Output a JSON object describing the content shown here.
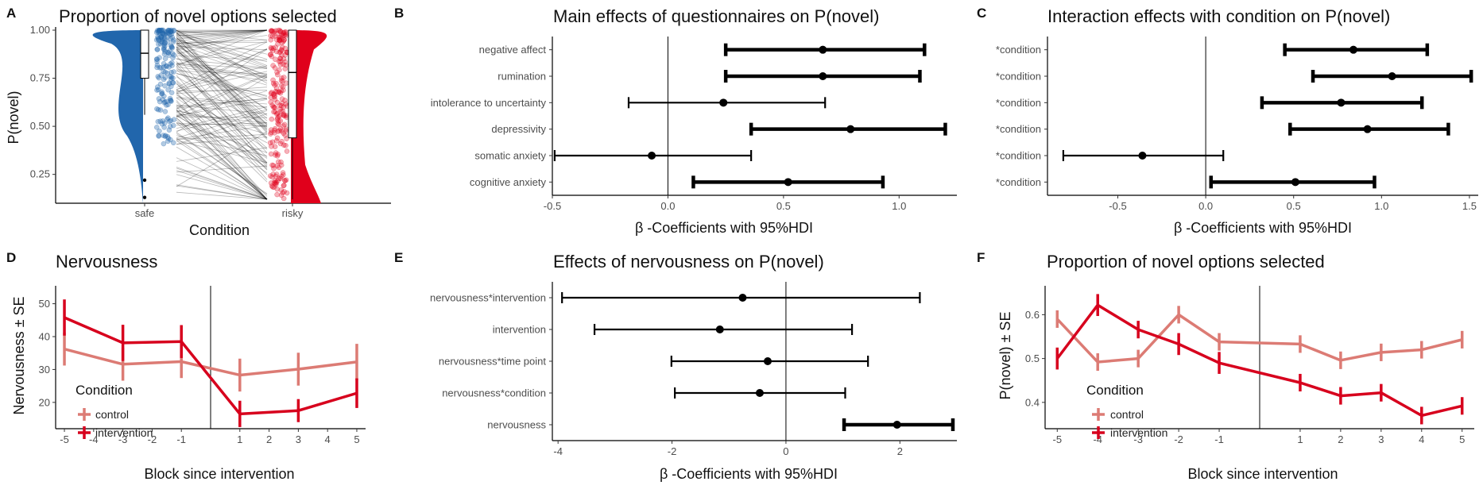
{
  "colors": {
    "safe": "#2166ac",
    "risky": "#e0001b",
    "control": "#dc7b74",
    "intervention": "#d7001d",
    "thin_line": "#000000",
    "pair_line": "#000000"
  },
  "panels": {
    "a": {
      "letter": "A",
      "title": "Proportion of novel options selected",
      "xlabel": "Condition",
      "ylabel": "P(novel)"
    },
    "b": {
      "letter": "B",
      "title": "Main effects of questionnaires on P(novel)",
      "xlabel": "β -Coefficients with 95%HDI"
    },
    "c": {
      "letter": "C",
      "title": "Interaction effects with condition on P(novel)",
      "xlabel": "β -Coefficients with 95%HDI"
    },
    "d": {
      "letter": "D",
      "title": "Nervousness",
      "xlabel": "Block since intervention",
      "ylabel": "Nervousness ± SE",
      "legend_title": "Condition",
      "legend_items": [
        "control",
        "intervention"
      ]
    },
    "e": {
      "letter": "E",
      "title": "Effects of nervousness on P(novel)",
      "xlabel": "β -Coefficients with 95%HDI"
    },
    "f": {
      "letter": "F",
      "title": "Proportion of novel options selected",
      "xlabel": "Block since intervention",
      "ylabel": "P(novel) ± SE",
      "legend_title": "Condition",
      "legend_items": [
        "control",
        "intervention"
      ]
    }
  },
  "chart_data": [
    {
      "id": "a",
      "type": "raincloud",
      "categories": [
        "safe",
        "risky"
      ],
      "ylim": [
        0.1,
        1.0
      ],
      "yticks": [
        0.25,
        0.5,
        0.75,
        1.0
      ],
      "ytick_labels": [
        "0.25",
        "0.50",
        "0.75",
        "1.00"
      ],
      "boxplots": [
        {
          "category": "safe",
          "q1": 0.75,
          "median": 0.88,
          "q3": 1.0,
          "whisker_low": 0.56,
          "whisker_high": 1.0,
          "outliers": [
            0.22,
            0.13
          ]
        },
        {
          "category": "risky",
          "q1": 0.44,
          "median": 0.78,
          "q3": 1.0,
          "whisker_low": 0.12,
          "whisker_high": 1.0,
          "outliers": []
        }
      ]
    },
    {
      "id": "b",
      "type": "forest",
      "xlim": [
        -0.5,
        1.25
      ],
      "xticks": [
        -0.5,
        0.0,
        0.5,
        1.0
      ],
      "xtick_labels": [
        "-0.5",
        "0.0",
        "0.5",
        "1.0"
      ],
      "labels": [
        "negative affect",
        "rumination",
        "intolerance to uncertainty",
        "depressivity",
        "somatic anxiety",
        "cognitive anxiety"
      ],
      "estimates": [
        0.67,
        0.67,
        0.24,
        0.79,
        -0.07,
        0.52
      ],
      "lower": [
        0.25,
        0.25,
        -0.17,
        0.36,
        -0.49,
        0.11
      ],
      "upper": [
        1.11,
        1.09,
        0.68,
        1.2,
        0.36,
        0.93
      ],
      "credible": [
        true,
        true,
        false,
        true,
        false,
        true
      ]
    },
    {
      "id": "c",
      "type": "forest",
      "xlim": [
        -0.9,
        1.55
      ],
      "xticks": [
        -0.5,
        0.0,
        0.5,
        1.0,
        1.5
      ],
      "xtick_labels": [
        "-0.5",
        "0.0",
        "0.5",
        "1.0",
        "1.5"
      ],
      "labels": [
        "*condition",
        "*condition",
        "*condition",
        "*condition",
        "*condition",
        "*condition"
      ],
      "estimates": [
        0.84,
        1.06,
        0.77,
        0.92,
        -0.36,
        0.51
      ],
      "lower": [
        0.45,
        0.61,
        0.32,
        0.48,
        -0.81,
        0.03
      ],
      "upper": [
        1.26,
        1.51,
        1.23,
        1.38,
        0.1,
        0.96
      ],
      "credible": [
        true,
        true,
        true,
        true,
        false,
        true
      ]
    },
    {
      "id": "d",
      "type": "line",
      "x": [
        -5,
        -3,
        -1,
        1,
        3,
        5
      ],
      "xticks": [
        -5,
        -4,
        -3,
        -2,
        -1,
        1,
        2,
        3,
        4,
        5
      ],
      "ylim": [
        12,
        54
      ],
      "yticks": [
        20,
        30,
        40,
        50
      ],
      "vline": 0,
      "series": [
        {
          "name": "control",
          "values": [
            36.2,
            31.6,
            32.4,
            28.3,
            30.1,
            32.3
          ],
          "se": [
            5,
            5,
            5,
            5,
            5,
            5.5
          ]
        },
        {
          "name": "intervention",
          "values": [
            45.8,
            38.1,
            38.5,
            16.5,
            17.5,
            22.8
          ],
          "se": [
            5.5,
            5.5,
            5,
            4,
            3.5,
            4.5
          ]
        }
      ]
    },
    {
      "id": "e",
      "type": "forest",
      "xlim": [
        -4.1,
        3.0
      ],
      "xticks": [
        -4,
        -2,
        0,
        2
      ],
      "xtick_labels": [
        "-4",
        "-2",
        "0",
        "2"
      ],
      "labels": [
        "nervousness*intervention",
        "intervention",
        "nervousness*time point",
        "nervousness*condition",
        "nervousness"
      ],
      "estimates": [
        -0.76,
        -1.16,
        -0.32,
        -0.46,
        1.95
      ],
      "lower": [
        -3.93,
        -3.36,
        -2.01,
        -1.95,
        1.02
      ],
      "upper": [
        2.35,
        1.16,
        1.44,
        1.04,
        2.93
      ],
      "credible": [
        false,
        false,
        false,
        false,
        true
      ]
    },
    {
      "id": "f",
      "type": "line",
      "x": [
        -5,
        -4,
        -3,
        -2,
        -1,
        1,
        2,
        3,
        4,
        5
      ],
      "xticks": [
        -5,
        -4,
        -3,
        -2,
        -1,
        1,
        2,
        3,
        4,
        5
      ],
      "ylim": [
        0.34,
        0.655
      ],
      "yticks": [
        0.4,
        0.5,
        0.6
      ],
      "ytick_labels": [
        "0.4",
        "0.5",
        "0.6"
      ],
      "vline": 0,
      "series": [
        {
          "name": "control",
          "values": [
            0.59,
            0.492,
            0.5,
            0.6,
            0.538,
            0.533,
            0.496,
            0.514,
            0.52,
            0.543
          ],
          "se": [
            0.02,
            0.02,
            0.02,
            0.02,
            0.02,
            0.02,
            0.02,
            0.02,
            0.02,
            0.02
          ]
        },
        {
          "name": "intervention",
          "values": [
            0.5,
            0.622,
            0.566,
            0.533,
            0.49,
            0.445,
            0.415,
            0.422,
            0.37,
            0.392
          ],
          "se": [
            0.025,
            0.025,
            0.02,
            0.025,
            0.025,
            0.02,
            0.02,
            0.02,
            0.02,
            0.02
          ]
        }
      ]
    }
  ]
}
